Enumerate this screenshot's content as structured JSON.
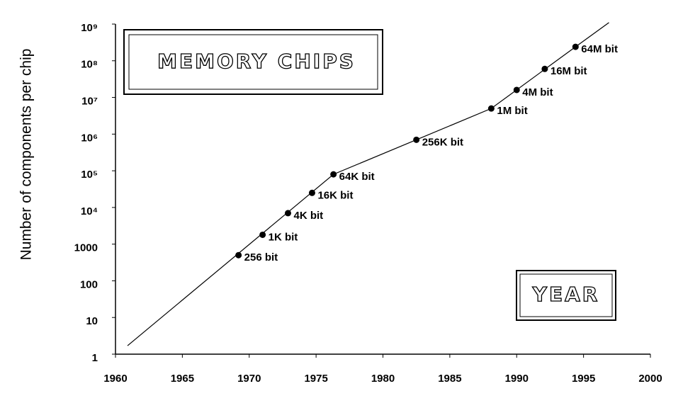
{
  "chart_data": {
    "type": "scatter",
    "title": "MEMORY CHIPS",
    "x_label": "YEAR",
    "y_label": "Number of components per chip",
    "log_y": true,
    "xlim": [
      1960,
      2000
    ],
    "xticks": [
      1960,
      1965,
      1970,
      1975,
      1980,
      1985,
      1990,
      1995,
      2000
    ],
    "ylim": [
      1,
      1000000000
    ],
    "yticks": [
      1,
      10,
      100,
      1000,
      {
        "value": 10000,
        "label": "10⁴"
      },
      {
        "value": 100000,
        "label": "10⁵"
      },
      {
        "value": 1000000,
        "label": "10⁶"
      },
      {
        "value": 10000000,
        "label": "10⁷"
      },
      {
        "value": 100000000,
        "label": "10⁸"
      },
      {
        "value": 1000000000,
        "label": "10⁹"
      }
    ],
    "series": [
      {
        "color": "#000000",
        "x": [
          1969.2,
          1971.0,
          1972.9,
          1974.7,
          1976.3,
          1982.5,
          1988.1,
          1990.0,
          1992.1,
          1994.4
        ],
        "values": [
          500,
          1800,
          7000,
          25000,
          80000,
          700000,
          5000000,
          16000000,
          60000000,
          240000000
        ],
        "labels": [
          "256 bit",
          "1K bit",
          "4K bit",
          "16K bit",
          "64K bit",
          "256K bit",
          "1M bit",
          "4M bit",
          "16M bit",
          "64M bit"
        ]
      }
    ],
    "trend_line": {
      "color": "#000000",
      "x": [
        1960.9,
        1976.3,
        1982.5,
        1988.1,
        1994.4,
        1996.9
      ],
      "values": [
        1.7,
        80000,
        700000,
        5000000,
        240000000,
        1100000000
      ]
    }
  }
}
